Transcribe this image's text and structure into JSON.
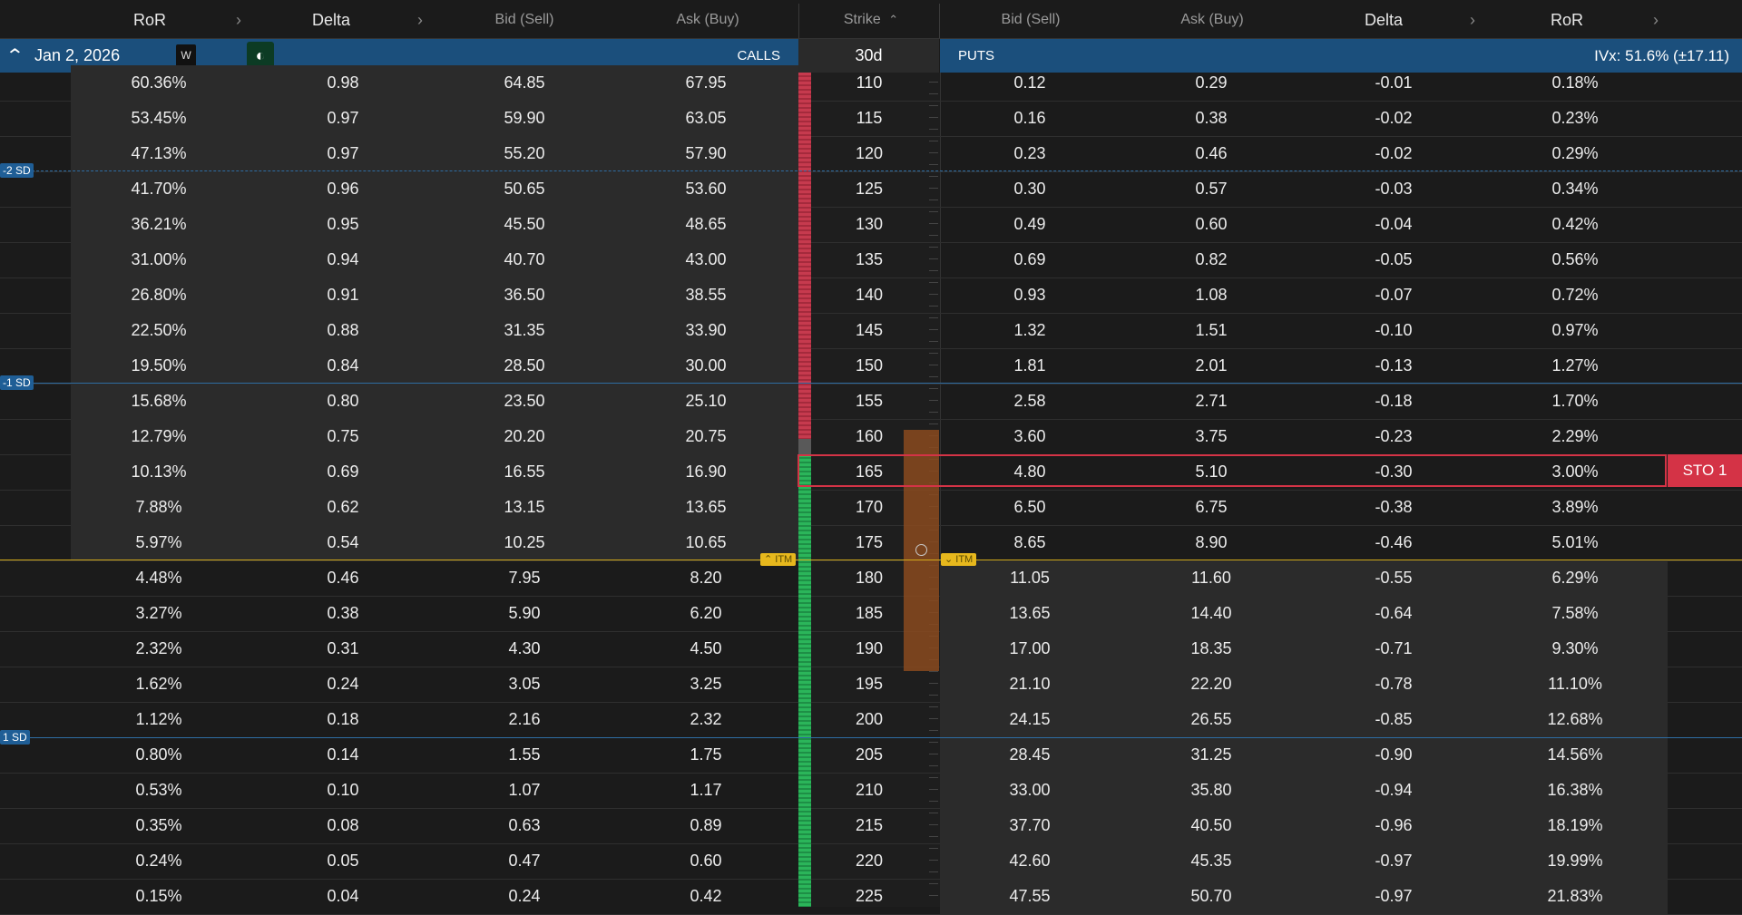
{
  "header": {
    "calls_ror": "RoR",
    "calls_delta": "Delta",
    "calls_bid": "Bid (Sell)",
    "calls_ask": "Ask (Buy)",
    "strike": "Strike",
    "puts_bid": "Bid (Sell)",
    "puts_ask": "Ask (Buy)",
    "puts_delta": "Delta",
    "puts_ror": "RoR",
    "chev": "›",
    "sort_icon": "⌃"
  },
  "expiry_bar": {
    "collapse_icon": "⌃",
    "date": "Jan 2, 2026",
    "weekly_badge": "W",
    "theme_icon": "◐",
    "calls_label": "CALLS",
    "dte": "30d",
    "puts_label": "PUTS",
    "ivx": "IVx: 51.6% (±17.11)"
  },
  "sd_labels": {
    "m2": "-2 SD",
    "m1": "-1 SD",
    "p1": "1 SD"
  },
  "itm_label": "ITM",
  "itm_call_arrow": "⌃",
  "itm_put_arrow": "⌄",
  "order_badge": "STO 1",
  "colors": {
    "accent_blue": "#1b4f7c",
    "itm_yellow": "#e7b81d",
    "sto_red": "#d43346",
    "order_orange": "#c7692a"
  },
  "rows": [
    {
      "c_ror": "60.36%",
      "c_delta": "0.98",
      "c_bid": "64.85",
      "c_ask": "67.95",
      "strike": "110",
      "p_bid": "0.12",
      "p_ask": "0.29",
      "p_delta": "-0.01",
      "p_ror": "0.18%"
    },
    {
      "c_ror": "53.45%",
      "c_delta": "0.97",
      "c_bid": "59.90",
      "c_ask": "63.05",
      "strike": "115",
      "p_bid": "0.16",
      "p_ask": "0.38",
      "p_delta": "-0.02",
      "p_ror": "0.23%"
    },
    {
      "c_ror": "47.13%",
      "c_delta": "0.97",
      "c_bid": "55.20",
      "c_ask": "57.90",
      "strike": "120",
      "p_bid": "0.23",
      "p_ask": "0.46",
      "p_delta": "-0.02",
      "p_ror": "0.29%"
    },
    {
      "c_ror": "41.70%",
      "c_delta": "0.96",
      "c_bid": "50.65",
      "c_ask": "53.60",
      "strike": "125",
      "p_bid": "0.30",
      "p_ask": "0.57",
      "p_delta": "-0.03",
      "p_ror": "0.34%"
    },
    {
      "c_ror": "36.21%",
      "c_delta": "0.95",
      "c_bid": "45.50",
      "c_ask": "48.65",
      "strike": "130",
      "p_bid": "0.49",
      "p_ask": "0.60",
      "p_delta": "-0.04",
      "p_ror": "0.42%"
    },
    {
      "c_ror": "31.00%",
      "c_delta": "0.94",
      "c_bid": "40.70",
      "c_ask": "43.00",
      "strike": "135",
      "p_bid": "0.69",
      "p_ask": "0.82",
      "p_delta": "-0.05",
      "p_ror": "0.56%"
    },
    {
      "c_ror": "26.80%",
      "c_delta": "0.91",
      "c_bid": "36.50",
      "c_ask": "38.55",
      "strike": "140",
      "p_bid": "0.93",
      "p_ask": "1.08",
      "p_delta": "-0.07",
      "p_ror": "0.72%"
    },
    {
      "c_ror": "22.50%",
      "c_delta": "0.88",
      "c_bid": "31.35",
      "c_ask": "33.90",
      "strike": "145",
      "p_bid": "1.32",
      "p_ask": "1.51",
      "p_delta": "-0.10",
      "p_ror": "0.97%"
    },
    {
      "c_ror": "19.50%",
      "c_delta": "0.84",
      "c_bid": "28.50",
      "c_ask": "30.00",
      "strike": "150",
      "p_bid": "1.81",
      "p_ask": "2.01",
      "p_delta": "-0.13",
      "p_ror": "1.27%"
    },
    {
      "c_ror": "15.68%",
      "c_delta": "0.80",
      "c_bid": "23.50",
      "c_ask": "25.10",
      "strike": "155",
      "p_bid": "2.58",
      "p_ask": "2.71",
      "p_delta": "-0.18",
      "p_ror": "1.70%"
    },
    {
      "c_ror": "12.79%",
      "c_delta": "0.75",
      "c_bid": "20.20",
      "c_ask": "20.75",
      "strike": "160",
      "p_bid": "3.60",
      "p_ask": "3.75",
      "p_delta": "-0.23",
      "p_ror": "2.29%"
    },
    {
      "c_ror": "10.13%",
      "c_delta": "0.69",
      "c_bid": "16.55",
      "c_ask": "16.90",
      "strike": "165",
      "p_bid": "4.80",
      "p_ask": "5.10",
      "p_delta": "-0.30",
      "p_ror": "3.00%"
    },
    {
      "c_ror": "7.88%",
      "c_delta": "0.62",
      "c_bid": "13.15",
      "c_ask": "13.65",
      "strike": "170",
      "p_bid": "6.50",
      "p_ask": "6.75",
      "p_delta": "-0.38",
      "p_ror": "3.89%"
    },
    {
      "c_ror": "5.97%",
      "c_delta": "0.54",
      "c_bid": "10.25",
      "c_ask": "10.65",
      "strike": "175",
      "p_bid": "8.65",
      "p_ask": "8.90",
      "p_delta": "-0.46",
      "p_ror": "5.01%"
    },
    {
      "c_ror": "4.48%",
      "c_delta": "0.46",
      "c_bid": "7.95",
      "c_ask": "8.20",
      "strike": "180",
      "p_bid": "11.05",
      "p_ask": "11.60",
      "p_delta": "-0.55",
      "p_ror": "6.29%"
    },
    {
      "c_ror": "3.27%",
      "c_delta": "0.38",
      "c_bid": "5.90",
      "c_ask": "6.20",
      "strike": "185",
      "p_bid": "13.65",
      "p_ask": "14.40",
      "p_delta": "-0.64",
      "p_ror": "7.58%"
    },
    {
      "c_ror": "2.32%",
      "c_delta": "0.31",
      "c_bid": "4.30",
      "c_ask": "4.50",
      "strike": "190",
      "p_bid": "17.00",
      "p_ask": "18.35",
      "p_delta": "-0.71",
      "p_ror": "9.30%"
    },
    {
      "c_ror": "1.62%",
      "c_delta": "0.24",
      "c_bid": "3.05",
      "c_ask": "3.25",
      "strike": "195",
      "p_bid": "21.10",
      "p_ask": "22.20",
      "p_delta": "-0.78",
      "p_ror": "11.10%"
    },
    {
      "c_ror": "1.12%",
      "c_delta": "0.18",
      "c_bid": "2.16",
      "c_ask": "2.32",
      "strike": "200",
      "p_bid": "24.15",
      "p_ask": "26.55",
      "p_delta": "-0.85",
      "p_ror": "12.68%"
    },
    {
      "c_ror": "0.80%",
      "c_delta": "0.14",
      "c_bid": "1.55",
      "c_ask": "1.75",
      "strike": "205",
      "p_bid": "28.45",
      "p_ask": "31.25",
      "p_delta": "-0.90",
      "p_ror": "14.56%"
    },
    {
      "c_ror": "0.53%",
      "c_delta": "0.10",
      "c_bid": "1.07",
      "c_ask": "1.17",
      "strike": "210",
      "p_bid": "33.00",
      "p_ask": "35.80",
      "p_delta": "-0.94",
      "p_ror": "16.38%"
    },
    {
      "c_ror": "0.35%",
      "c_delta": "0.08",
      "c_bid": "0.63",
      "c_ask": "0.89",
      "strike": "215",
      "p_bid": "37.70",
      "p_ask": "40.50",
      "p_delta": "-0.96",
      "p_ror": "18.19%"
    },
    {
      "c_ror": "0.24%",
      "c_delta": "0.05",
      "c_bid": "0.47",
      "c_ask": "0.60",
      "strike": "220",
      "p_bid": "42.60",
      "p_ask": "45.35",
      "p_delta": "-0.97",
      "p_ror": "19.99%"
    },
    {
      "c_ror": "0.15%",
      "c_delta": "0.04",
      "c_bid": "0.24",
      "c_ask": "0.42",
      "strike": "225",
      "p_bid": "47.55",
      "p_ask": "50.70",
      "p_delta": "-0.97",
      "p_ror": "21.83%"
    }
  ]
}
